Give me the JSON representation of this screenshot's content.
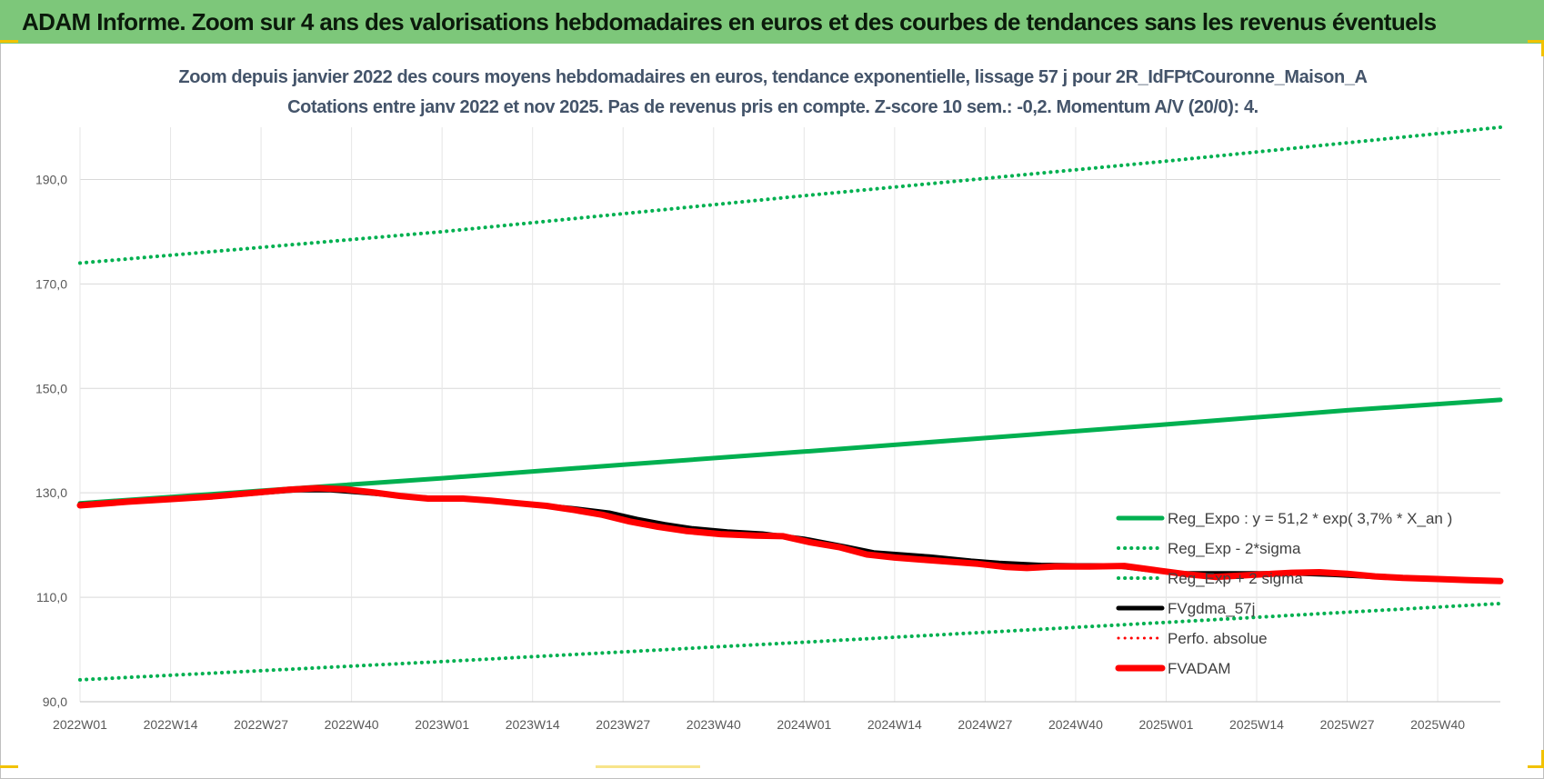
{
  "banner": {
    "title": "ADAM Informe. Zoom sur 4 ans des valorisations hebdomadaires en euros et des courbes de tendances sans les revenus éventuels"
  },
  "colors": {
    "banner": "#7dc77a",
    "trend": "#00b050",
    "fvgdma": "#000000",
    "perfo": "#ff0000",
    "fvadam": "#ff0000",
    "title_text": "#44546a"
  },
  "chart_data": {
    "type": "line",
    "title": "Zoom depuis janvier 2022 des cours moyens hebdomadaires en euros, tendance exponentielle, lissage 57 j pour 2R_IdFPtCouronne_Maison_A",
    "subtitle": "Cotations entre janv 2022 et nov 2025. Pas de revenus pris en compte. Z-score 10 sem.: -0,2. Momentum A/V (20/0): 4.",
    "x_tick_labels": [
      "2022W01",
      "2022W14",
      "2022W27",
      "2022W40",
      "2023W01",
      "2023W14",
      "2023W27",
      "2023W40",
      "2024W01",
      "2024W14",
      "2024W27",
      "2024W40",
      "2025W01",
      "2025W14",
      "2025W27",
      "2025W40"
    ],
    "y_tick_labels": [
      "90,0",
      "110,0",
      "130,0",
      "150,0",
      "170,0",
      "190,0"
    ],
    "x_range_weeks": [
      0,
      204
    ],
    "ylim": [
      90,
      200
    ],
    "grid": true,
    "legend_position": "bottom-right",
    "series": [
      {
        "name": "Reg_Expo : y = 51,2 * exp( 3,7% *  X_an )",
        "style": "solid",
        "width": 5,
        "color": "#00b050",
        "points": [
          [
            0,
            128.0
          ],
          [
            26,
            130.4
          ],
          [
            52,
            132.8
          ],
          [
            78,
            135.4
          ],
          [
            104,
            137.9
          ],
          [
            130,
            140.5
          ],
          [
            156,
            143.1
          ],
          [
            182,
            145.8
          ],
          [
            204,
            147.8
          ]
        ]
      },
      {
        "name": "Reg_Exp - 2*sigma",
        "style": "dotted",
        "width": 4,
        "color": "#00b050",
        "points": [
          [
            0,
            94.2
          ],
          [
            52,
            97.7
          ],
          [
            104,
            101.4
          ],
          [
            156,
            105.2
          ],
          [
            204,
            108.8
          ]
        ]
      },
      {
        "name": "Reg_Exp + 2 sigma",
        "style": "dotted",
        "width": 4,
        "color": "#00b050",
        "points": [
          [
            0,
            174.0
          ],
          [
            52,
            180.0
          ],
          [
            104,
            186.9
          ],
          [
            156,
            193.5
          ],
          [
            204,
            200.0
          ]
        ]
      },
      {
        "name": "FVgdma_57j",
        "style": "solid",
        "width": 5,
        "color": "#000000",
        "points": [
          [
            0,
            127.8
          ],
          [
            8,
            128.4
          ],
          [
            13,
            128.9
          ],
          [
            20,
            129.3
          ],
          [
            26,
            130.0
          ],
          [
            31,
            130.5
          ],
          [
            36,
            130.5
          ],
          [
            41,
            130.0
          ],
          [
            46,
            129.4
          ],
          [
            52,
            128.9
          ],
          [
            58,
            128.6
          ],
          [
            65,
            127.8
          ],
          [
            71,
            127.0
          ],
          [
            76,
            126.2
          ],
          [
            80,
            125.0
          ],
          [
            84,
            124.0
          ],
          [
            88,
            123.2
          ],
          [
            93,
            122.6
          ],
          [
            98,
            122.2
          ],
          [
            104,
            121.2
          ],
          [
            110,
            119.7
          ],
          [
            114,
            118.6
          ],
          [
            118,
            118.2
          ],
          [
            122,
            117.8
          ],
          [
            128,
            117.0
          ],
          [
            132,
            116.6
          ],
          [
            138,
            116.2
          ],
          [
            143,
            116.1
          ],
          [
            148,
            116.1
          ],
          [
            153,
            115.3
          ],
          [
            158,
            114.6
          ],
          [
            162,
            114.6
          ],
          [
            168,
            114.6
          ],
          [
            174,
            114.6
          ],
          [
            180,
            114.3
          ],
          [
            186,
            113.9
          ],
          [
            192,
            113.6
          ],
          [
            198,
            113.4
          ],
          [
            204,
            113.2
          ]
        ]
      },
      {
        "name": "Perfo. absolue",
        "style": "dotted",
        "width": 3,
        "color": "#ff0000",
        "points": []
      },
      {
        "name": "FVADAM",
        "style": "solid",
        "width": 7,
        "color": "#ff0000",
        "points": [
          [
            0,
            127.6
          ],
          [
            7,
            128.3
          ],
          [
            13,
            128.8
          ],
          [
            19,
            129.3
          ],
          [
            25,
            130.0
          ],
          [
            30,
            130.6
          ],
          [
            34,
            130.9
          ],
          [
            38,
            130.7
          ],
          [
            42,
            130.1
          ],
          [
            46,
            129.4
          ],
          [
            50,
            128.9
          ],
          [
            55,
            128.9
          ],
          [
            59,
            128.5
          ],
          [
            63,
            128.0
          ],
          [
            67,
            127.5
          ],
          [
            71,
            126.7
          ],
          [
            75,
            125.8
          ],
          [
            79,
            124.5
          ],
          [
            83,
            123.5
          ],
          [
            87,
            122.7
          ],
          [
            92,
            122.1
          ],
          [
            97,
            121.8
          ],
          [
            101,
            121.7
          ],
          [
            105,
            120.5
          ],
          [
            109,
            119.6
          ],
          [
            113,
            118.2
          ],
          [
            117,
            117.6
          ],
          [
            121,
            117.2
          ],
          [
            125,
            116.8
          ],
          [
            129,
            116.4
          ],
          [
            133,
            115.8
          ],
          [
            136,
            115.6
          ],
          [
            140,
            115.9
          ],
          [
            145,
            115.9
          ],
          [
            150,
            116.0
          ],
          [
            155,
            115.1
          ],
          [
            159,
            114.4
          ],
          [
            163,
            113.9
          ],
          [
            166,
            114.1
          ],
          [
            170,
            114.4
          ],
          [
            174,
            114.7
          ],
          [
            178,
            114.8
          ],
          [
            182,
            114.5
          ],
          [
            186,
            114.0
          ],
          [
            190,
            113.7
          ],
          [
            195,
            113.5
          ],
          [
            199,
            113.3
          ],
          [
            204,
            113.1
          ]
        ]
      }
    ]
  }
}
